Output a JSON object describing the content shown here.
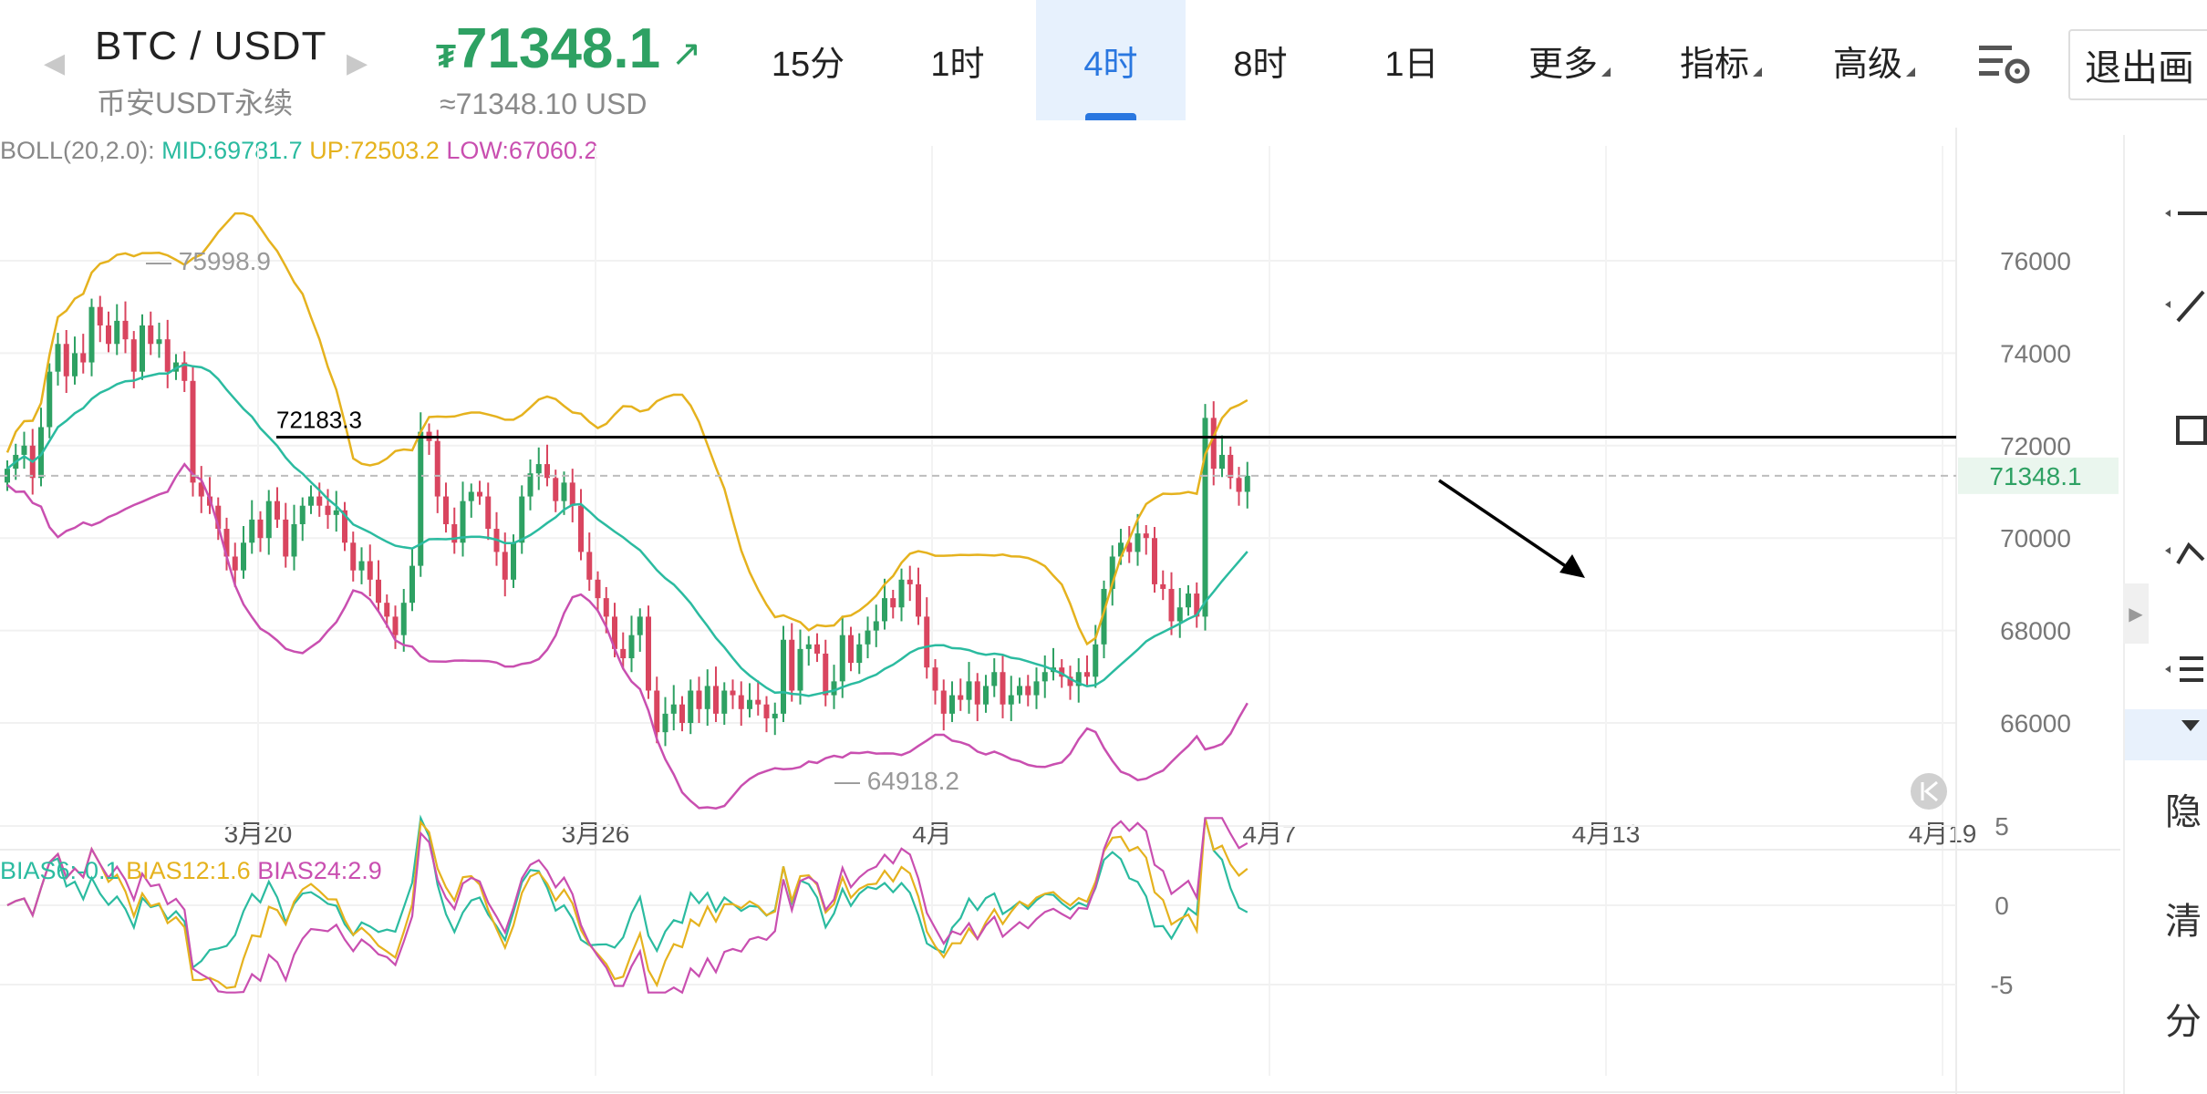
{
  "header": {
    "symbol": "BTC / USDT",
    "subname": "币安USDT永续",
    "price": "71348.1",
    "price_prefix": "₮",
    "usd_price": "≈71348.10 USD",
    "colors": {
      "up": "#2ea163",
      "down": "#d9455f",
      "accent": "#2a77e0"
    }
  },
  "timeframes": [
    {
      "label": "15分",
      "active": false
    },
    {
      "label": "1时",
      "active": false
    },
    {
      "label": "4时",
      "active": true
    },
    {
      "label": "8时",
      "active": false
    },
    {
      "label": "1日",
      "active": false
    }
  ],
  "menus": [
    "更多",
    "指标",
    "高级"
  ],
  "exit_label": "退出画",
  "boll": {
    "label": "BOLL(20,2.0):",
    "mid": "MID:69781.7",
    "up": "UP:72503.2",
    "low": "LOW:67060.2"
  },
  "bias": {
    "b6": "BIAS6:-0.1",
    "b12": "BIAS12:1.6",
    "b24": "BIAS24:2.9"
  },
  "right_panel": {
    "items": [
      "隐",
      "清",
      "分"
    ]
  },
  "chart_data": {
    "type": "candlestick",
    "price_axis": {
      "ticks": [
        "76000",
        "74000",
        "72000",
        "70000",
        "68000",
        "66000"
      ],
      "range": [
        63900,
        77300
      ]
    },
    "current_price": "71348.1",
    "horizontal_line": {
      "label": "72183.3",
      "value": 72183.3
    },
    "high_label": "75998.9",
    "low_label": "64918.2",
    "x_axis": {
      "ticks": [
        "3月20",
        "3月26",
        "4月",
        "4月7",
        "4月13",
        "4月19"
      ]
    },
    "bias_axis": {
      "ticks": [
        "5",
        "0",
        "-5"
      ]
    },
    "closes": [
      71500,
      71800,
      72000,
      71300,
      72400,
      73600,
      74200,
      73500,
      74000,
      73800,
      75000,
      74600,
      74200,
      74700,
      74300,
      73600,
      74600,
      74200,
      74300,
      73600,
      73800,
      73400,
      71200,
      70900,
      70700,
      70200,
      69600,
      69300,
      69900,
      70400,
      70000,
      70800,
      70400,
      69600,
      70300,
      70700,
      70900,
      70700,
      70500,
      70600,
      69900,
      69300,
      69500,
      69100,
      68600,
      68300,
      67900,
      68600,
      69400,
      72300,
      72100,
      70900,
      70300,
      69900,
      70800,
      71000,
      70900,
      70200,
      69700,
      69100,
      69900,
      70900,
      71400,
      71600,
      71300,
      70800,
      71200,
      70700,
      69700,
      69100,
      68700,
      68300,
      67600,
      67400,
      67900,
      68300,
      66700,
      65800,
      66200,
      66400,
      66000,
      66700,
      66300,
      66800,
      66200,
      66700,
      66600,
      66300,
      66500,
      66400,
      66100,
      66200,
      67800,
      66700,
      67600,
      67700,
      67500,
      66600,
      66900,
      67900,
      67300,
      67700,
      68000,
      68200,
      68700,
      68500,
      69100,
      69000,
      68300,
      67200,
      66700,
      66200,
      66600,
      66500,
      66900,
      66400,
      66800,
      67100,
      66400,
      66600,
      66800,
      66600,
      66900,
      67100,
      67200,
      67000,
      66800,
      67100,
      67000,
      67700,
      68900,
      69600,
      69900,
      69700,
      70100,
      70000,
      69000,
      68900,
      68200,
      68500,
      68800,
      68300,
      72600,
      71500,
      71800,
      71300,
      71000,
      71348
    ]
  }
}
